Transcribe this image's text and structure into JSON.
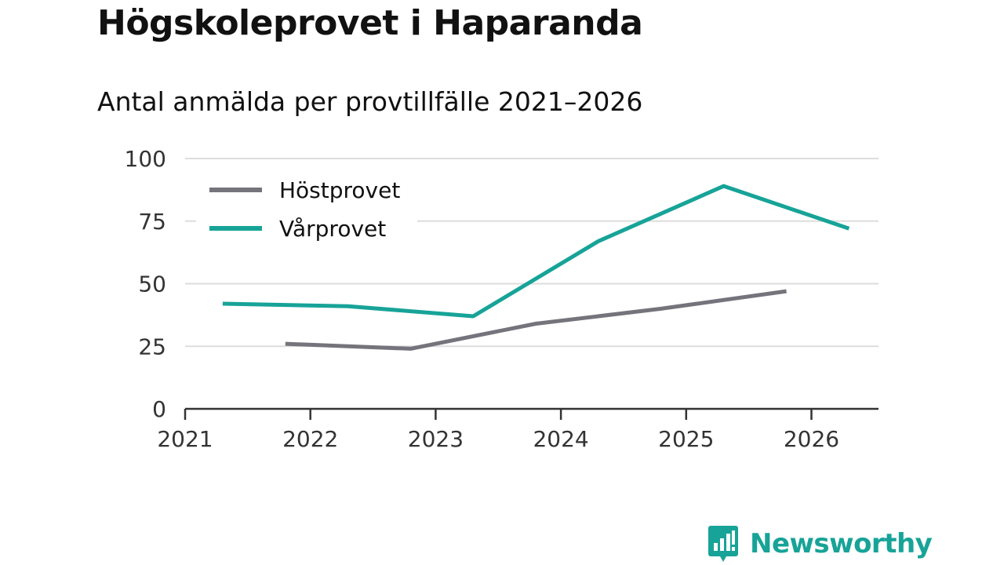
{
  "title": "Högskoleprovet i Haparanda",
  "subtitle": "Antal anmälda per provtillfälle 2021–2026",
  "brand": {
    "name": "Newsworthy",
    "icon": "newsworthy-logo-icon",
    "color": "#17a398"
  },
  "chart_data": {
    "type": "line",
    "title": "Högskoleprovet i Haparanda",
    "subtitle": "Antal anmälda per provtillfälle 2021–2026",
    "xlabel": "",
    "ylabel": "",
    "xlim": [
      2021,
      2026.55
    ],
    "ylim": [
      0,
      100
    ],
    "x_ticks": [
      "2021",
      "2022",
      "2023",
      "2024",
      "2025",
      "2026"
    ],
    "y_ticks": [
      "0",
      "25",
      "50",
      "75",
      "100"
    ],
    "grid": true,
    "legend_position": "top-left",
    "series": [
      {
        "name": "Höstprovet",
        "color": "#75737b",
        "x": [
          2021.8,
          2022.8,
          2023.8,
          2024.8,
          2025.8
        ],
        "values": [
          26,
          24,
          34,
          40,
          47
        ]
      },
      {
        "name": "Vårprovet",
        "color": "#17a398",
        "x": [
          2021.3,
          2022.3,
          2023.3,
          2024.3,
          2025.3,
          2026.3
        ],
        "values": [
          42,
          41,
          37,
          67,
          89,
          72
        ]
      }
    ]
  }
}
